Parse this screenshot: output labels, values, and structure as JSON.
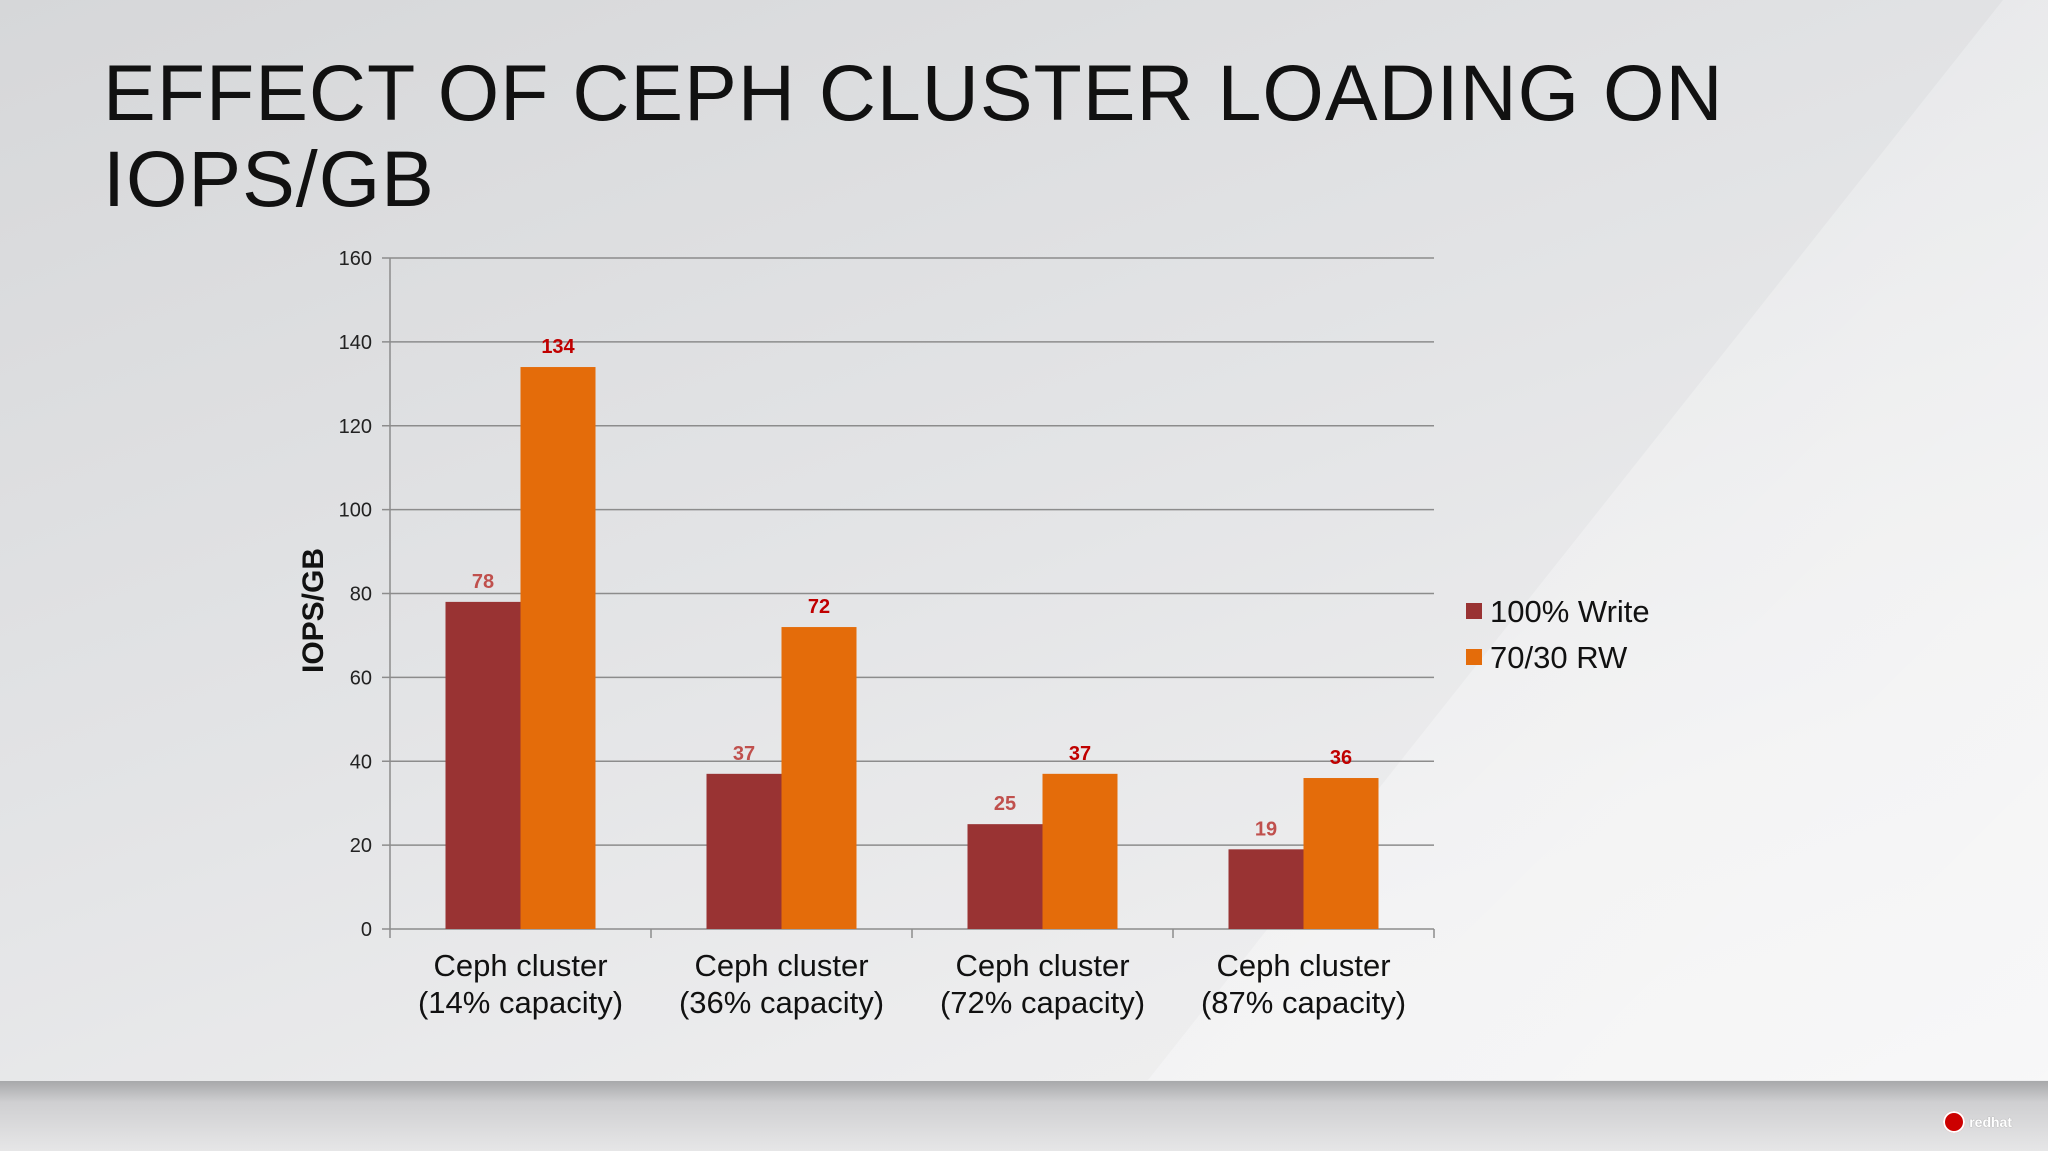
{
  "slide": {
    "title_line1": "EFFECT OF CEPH CLUSTER LOADING ON",
    "title_line2": "IOPS/GB"
  },
  "chart_data": {
    "type": "bar",
    "ylabel": "IOPS/GB",
    "ylim": [
      0,
      160
    ],
    "yticks": [
      0,
      20,
      40,
      60,
      80,
      100,
      120,
      140,
      160
    ],
    "grid": true,
    "legend_position": "right",
    "categories": [
      [
        "Ceph cluster",
        "(14% capacity)"
      ],
      [
        "Ceph cluster",
        "(36% capacity)"
      ],
      [
        "Ceph cluster",
        "(72% capacity)"
      ],
      [
        "Ceph cluster",
        "(87% capacity)"
      ]
    ],
    "series": [
      {
        "name": "100% Write",
        "color": "#993333",
        "label_color": "#c0504d",
        "values": [
          78,
          37,
          25,
          19
        ]
      },
      {
        "name": "70/30 RW",
        "color": "#e46c0a",
        "label_color": "#c00000",
        "values": [
          134,
          72,
          37,
          36
        ]
      }
    ]
  },
  "footer": {
    "logo_text": "redhat"
  }
}
